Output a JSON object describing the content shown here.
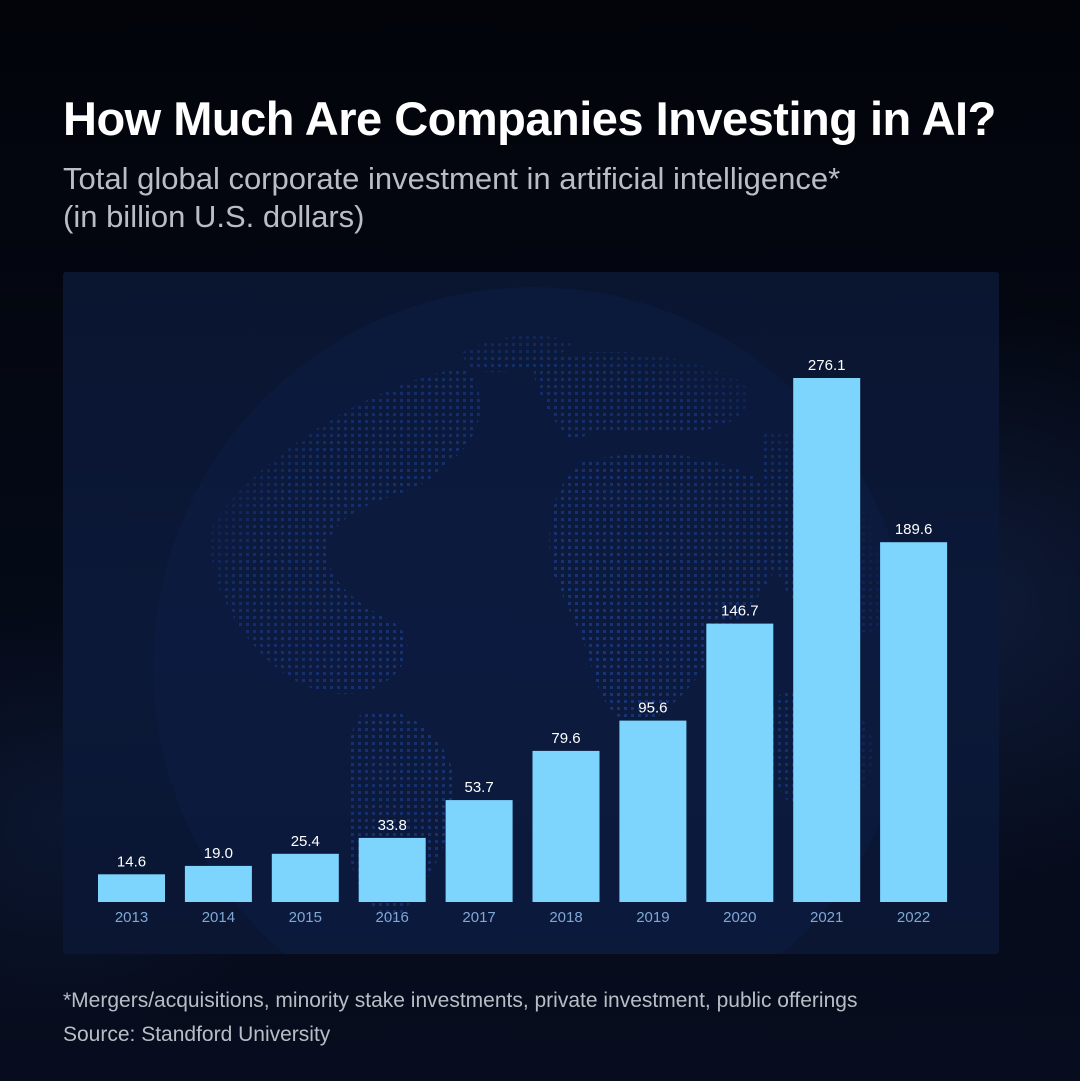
{
  "header": {
    "title": "How Much Are Companies Investing in AI?",
    "subtitle_line1": "Total global corporate investment in artificial intelligence*",
    "subtitle_line2": "(in billion U.S. dollars)"
  },
  "footer": {
    "note": "*Mergers/acquisitions, minority stake investments, private investment, public offerings",
    "source": "Source: Standford University"
  },
  "colors": {
    "bar": "#7dd4fc",
    "panel": "#0b1838",
    "tick_label": "#7fa8d6",
    "value_label": "#ffffff"
  },
  "chart_data": {
    "type": "bar",
    "title": "How Much Are Companies Investing in AI?",
    "subtitle": "Total global corporate investment in artificial intelligence* (in billion U.S. dollars)",
    "categories": [
      "2013",
      "2014",
      "2015",
      "2016",
      "2017",
      "2018",
      "2019",
      "2020",
      "2021",
      "2022"
    ],
    "values": [
      14.6,
      19.0,
      25.4,
      33.8,
      53.7,
      79.6,
      95.6,
      146.7,
      276.1,
      189.6
    ],
    "value_labels": [
      "14.6",
      "19.0",
      "25.4",
      "33.8",
      "53.7",
      "79.6",
      "95.6",
      "146.7",
      "276.1",
      "189.6"
    ],
    "xlabel": "",
    "ylabel": "",
    "ylim": [
      0,
      276.1
    ],
    "grid": false,
    "legend": "none"
  }
}
